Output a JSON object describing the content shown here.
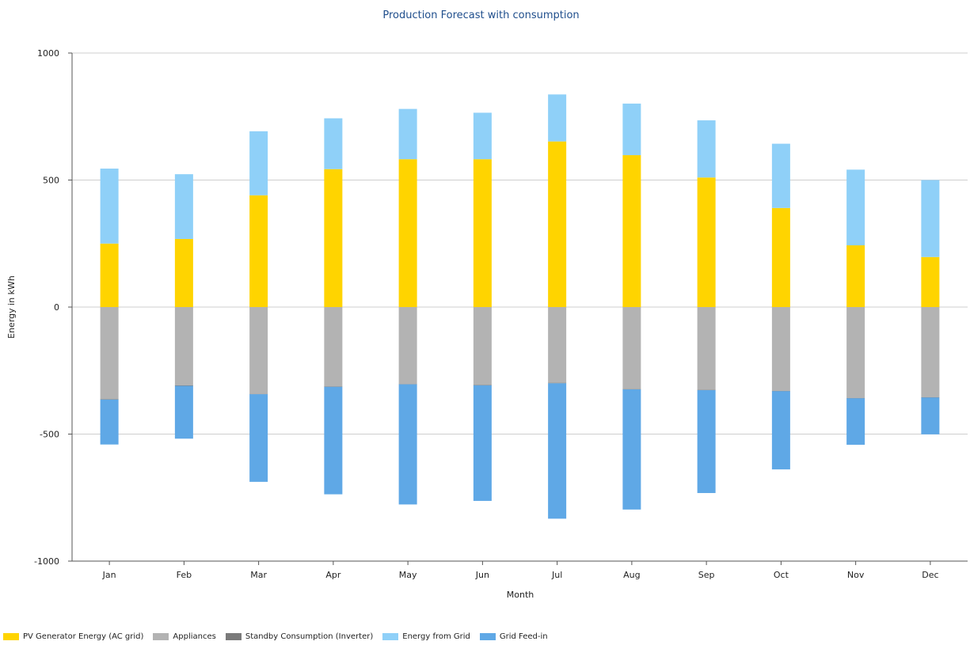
{
  "chart_data": {
    "type": "bar",
    "stacked": true,
    "title": "Production Forecast with consumption",
    "xlabel": "Month",
    "ylabel": "Energy in kWh",
    "ylim": [
      -1000,
      1000
    ],
    "yticks": [
      1000,
      500,
      0,
      -500,
      -1000
    ],
    "grid": true,
    "legend_position": "bottom-left",
    "categories": [
      "Jan",
      "Feb",
      "Mar",
      "Apr",
      "May",
      "Jun",
      "Jul",
      "Aug",
      "Sep",
      "Oct",
      "Nov",
      "Dec"
    ],
    "series": [
      {
        "name": "PV Generator Energy (AC grid)",
        "color": "#ffd400",
        "stack": "positive",
        "values": [
          250,
          268,
          440,
          543,
          582,
          582,
          652,
          598,
          510,
          390,
          243,
          197
        ]
      },
      {
        "name": "Appliances",
        "color": "#b3b3b3",
        "stack": "negative",
        "values": [
          -363,
          -308,
          -342,
          -313,
          -303,
          -307,
          -298,
          -323,
          -326,
          -330,
          -358,
          -355
        ]
      },
      {
        "name": "Standby Consumption (Inverter)",
        "color": "#7a7a7a",
        "stack": "negative",
        "values": [
          -1,
          -2,
          -1,
          -1,
          -1,
          -1,
          -2,
          -1,
          -1,
          -1,
          -1,
          -1
        ]
      },
      {
        "name": "Energy from Grid",
        "color": "#8fd0f8",
        "stack": "positive",
        "values": [
          295,
          255,
          252,
          200,
          198,
          183,
          185,
          203,
          225,
          253,
          298,
          303
        ]
      },
      {
        "name": "Grid Feed-in",
        "color": "#5fa8e6",
        "stack": "negative",
        "values": [
          -177,
          -208,
          -345,
          -423,
          -473,
          -455,
          -533,
          -473,
          -405,
          -308,
          -183,
          -145
        ]
      }
    ]
  },
  "legend_items": [
    {
      "label": "PV Generator Energy (AC grid)",
      "color": "#ffd400"
    },
    {
      "label": "Appliances",
      "color": "#b3b3b3"
    },
    {
      "label": "Standby Consumption (Inverter)",
      "color": "#7a7a7a"
    },
    {
      "label": "Energy from Grid",
      "color": "#8fd0f8"
    },
    {
      "label": "Grid Feed-in",
      "color": "#5fa8e6"
    }
  ]
}
